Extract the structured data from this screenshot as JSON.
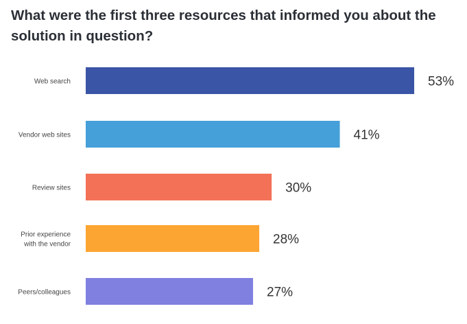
{
  "chart_data": {
    "type": "bar",
    "orientation": "horizontal",
    "title": "What were the first three resources that informed you about the solution in question?",
    "categories": [
      [
        "Web search"
      ],
      [
        "Vendor web sites"
      ],
      [
        "Review sites"
      ],
      [
        "Prior experience",
        "with the vendor"
      ],
      [
        "Peers/colleagues"
      ]
    ],
    "values": [
      53,
      41,
      30,
      28,
      27
    ],
    "value_labels": [
      "53%",
      "41%",
      "30%",
      "28%",
      "27%"
    ],
    "colors": [
      "#3a55a6",
      "#459fd9",
      "#f37157",
      "#fda532",
      "#8080e0"
    ],
    "xlabel": "",
    "ylabel": "",
    "xlim": [
      0,
      53
    ],
    "grid": false
  }
}
